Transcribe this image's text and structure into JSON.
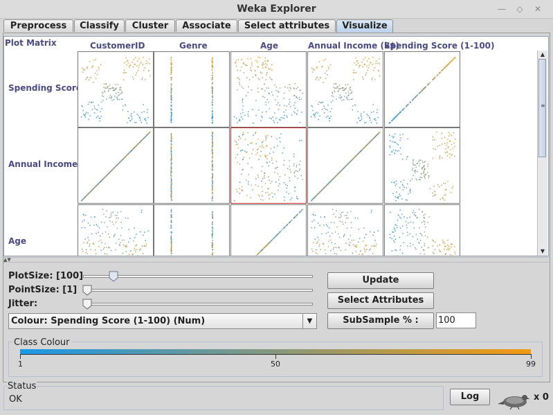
{
  "window": {
    "title": "Weka Explorer"
  },
  "tabs": [
    "Preprocess",
    "Classify",
    "Cluster",
    "Associate",
    "Select attributes",
    "Visualize"
  ],
  "active_tab": "Visualize",
  "matrix": {
    "title": "Plot Matrix",
    "columns": [
      "CustomerID",
      "Genre",
      "Age",
      "Annual Income (k$)",
      "Spending Score (1-100)"
    ],
    "rows": [
      "Spending Score",
      "Annual Income",
      "Age"
    ],
    "selected_cell": {
      "row": "Annual Income",
      "column": "Age"
    }
  },
  "controls": {
    "plot_size_label": "PlotSize: [100]",
    "point_size_label": "PointSize: [1]",
    "jitter_label": "Jitter:",
    "plot_size_level": 0.12,
    "point_size_level": 0.0,
    "jitter_level": 0.0,
    "colour_select": "Colour: Spending Score (1-100) (Num)",
    "update_button": "Update",
    "select_attributes_button": "Select Attributes",
    "subsample_button": "SubSample % :",
    "subsample_value": "100"
  },
  "class_colour": {
    "title": "Class Colour",
    "min_label": "1",
    "mid_label": "50",
    "max_label": "99",
    "low_color": "#1a98e8",
    "high_color": "#f49a10"
  },
  "status": {
    "title": "Status",
    "text": "OK",
    "log_button": "Log",
    "task_count": "x 0"
  }
}
